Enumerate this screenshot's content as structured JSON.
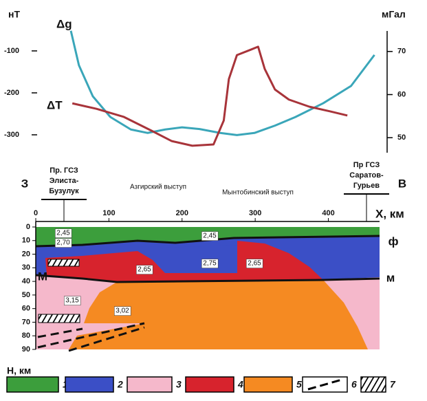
{
  "chart_data": [
    {
      "type": "line",
      "y_label": "нТ",
      "y2_label": "мГал",
      "xlim": [
        0,
        470
      ],
      "ylim": [
        -350,
        -50
      ],
      "yticks": [
        -100,
        -200,
        -300
      ],
      "y2lim": [
        45.8,
        75
      ],
      "y2ticks": [
        70,
        60,
        50
      ],
      "series": [
        {
          "name": "Δg",
          "color": "#3aa6b9",
          "axis": "y2",
          "x": [
            48,
            59,
            78,
            102,
            130,
            153,
            177,
            200,
            224,
            252,
            275,
            299,
            327,
            355,
            393,
            431,
            463
          ],
          "values": [
            74.8,
            66.8,
            59.6,
            54.8,
            51.9,
            51.1,
            51.9,
            52.4,
            52.0,
            51.1,
            50.6,
            51.1,
            52.8,
            54.8,
            58.0,
            62.0,
            69.2
          ]
        },
        {
          "name": "ΔT",
          "color": "#a8343a",
          "x": [
            50,
            83,
            120,
            158,
            186,
            214,
            243,
            257,
            264,
            275,
            294,
            304,
            313,
            327,
            346,
            374,
            402,
            426
          ],
          "values": [
            -225,
            -238,
            -257,
            -290,
            -315,
            -326,
            -323,
            -266,
            -167,
            -110,
            -97,
            -90,
            -143,
            -192,
            -216,
            -233,
            -244,
            -254
          ]
        }
      ]
    },
    {
      "type": "section",
      "x_label": "X, км",
      "y_label": "Н, км",
      "xlim": [
        0,
        470
      ],
      "xticks": [
        0,
        100,
        200,
        300,
        400
      ],
      "ylim": [
        0,
        90
      ],
      "yticks": [
        0,
        10,
        20,
        30,
        40,
        50,
        60,
        70,
        80,
        90
      ],
      "sides": [
        "З",
        "В"
      ],
      "profiles": [
        [
          "Пр. ГСЗ",
          "Элиста-",
          "Бузулук"
        ],
        [
          "Пр ГСЗ",
          "Саратов-",
          "Гурьев"
        ]
      ],
      "features": [
        "Азгирский выступ",
        "Мынтобинский выступ"
      ],
      "boundaries": [
        "ф",
        "м",
        "М"
      ],
      "densities": [
        "2,45",
        "2,70",
        "2,45",
        "2,75",
        "2,65",
        "2,65",
        "3,15",
        "3,02"
      ],
      "legend": [
        {
          "label": "1",
          "color": "#3c9e3c"
        },
        {
          "label": "2",
          "color": "#3b4fc6"
        },
        {
          "label": "3",
          "color": "#f5b8cb"
        },
        {
          "label": "4",
          "color": "#d7232d"
        },
        {
          "label": "5",
          "color": "#f58a22"
        },
        {
          "label": "6",
          "color": "#ffffff"
        },
        {
          "label": "7",
          "color": "#ffffff"
        }
      ]
    }
  ]
}
